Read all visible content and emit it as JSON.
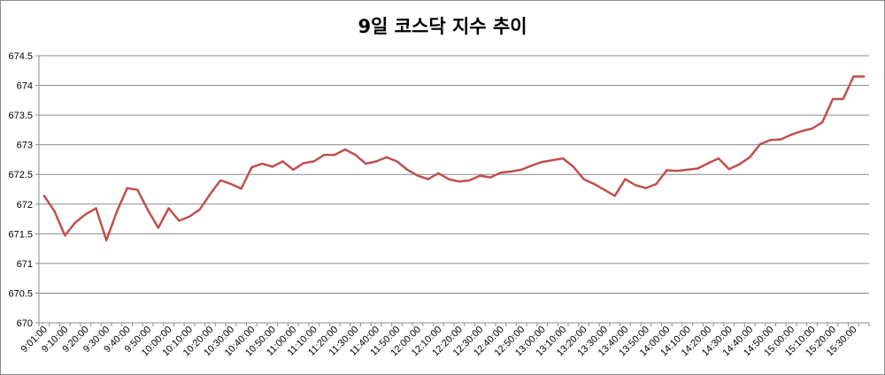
{
  "chart_data": {
    "type": "line",
    "title": "9일 코스닥 지수 추이",
    "xlabel": "",
    "ylabel": "",
    "ylim": [
      670,
      674.5
    ],
    "yticks": [
      "670",
      "670.5",
      "671",
      "671.5",
      "672",
      "672.5",
      "673",
      "673.5",
      "674",
      "674.5"
    ],
    "xticks": [
      "9:01:00",
      "9:10:00",
      "9:20:00",
      "9:30:00",
      "9:40:00",
      "9:50:00",
      "10:00:00",
      "10:10:00",
      "10:20:00",
      "10:30:00",
      "10:40:00",
      "10:50:00",
      "11:00:00",
      "11:10:00",
      "11:20:00",
      "11:30:00",
      "11:40:00",
      "11:50:00",
      "12:00:00",
      "12:10:00",
      "12:20:00",
      "12:30:00",
      "12:40:00",
      "12:50:00",
      "13:00:00",
      "13:10:00",
      "13:20:00",
      "13:30:00",
      "13:40:00",
      "13:50:00",
      "14:00:00",
      "14:10:00",
      "14:20:00",
      "14:30:00",
      "14:40:00",
      "14:50:00",
      "15:00:00",
      "15:10:00",
      "15:20:00",
      "15:30:00"
    ],
    "grid": true,
    "legend": "none",
    "line_color": "#c0504d",
    "series": [
      {
        "values": [
          672.14,
          671.88,
          671.47,
          671.69,
          671.83,
          671.93,
          671.39,
          671.87,
          672.27,
          672.24,
          671.9,
          671.6,
          671.93,
          671.72,
          671.79,
          671.91,
          672.17,
          672.4,
          672.34,
          672.26,
          672.62,
          672.68,
          672.63,
          672.72,
          672.58,
          672.69,
          672.72,
          672.83,
          672.83,
          672.92,
          672.83,
          672.68,
          672.72,
          672.79,
          672.72,
          672.58,
          672.48,
          672.42,
          672.52,
          672.42,
          672.38,
          672.4,
          672.48,
          672.45,
          672.53,
          672.55,
          672.58,
          672.65,
          672.71,
          672.74,
          672.77,
          672.63,
          672.42,
          672.34,
          672.24,
          672.14,
          672.42,
          672.32,
          672.27,
          672.34,
          672.57,
          672.56,
          672.58,
          672.6,
          672.69,
          672.77,
          672.59,
          672.67,
          672.79,
          673.01,
          673.08,
          673.09,
          673.17,
          673.23,
          673.27,
          673.38,
          673.77,
          673.77,
          674.15,
          674.15
        ]
      }
    ]
  }
}
